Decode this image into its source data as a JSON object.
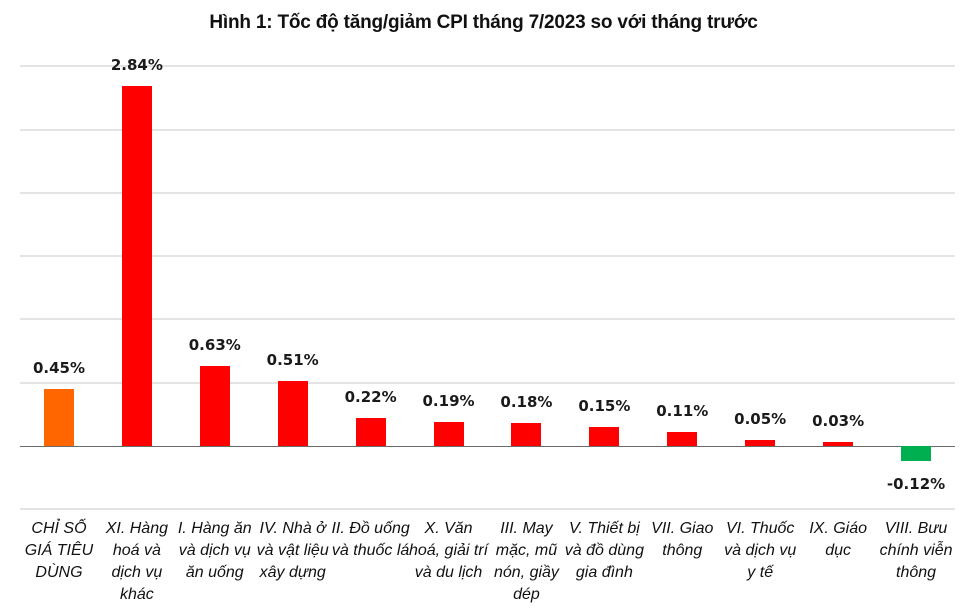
{
  "chart_data": {
    "type": "bar",
    "title": "Hình 1: Tốc độ tăng/giảm CPI tháng 7/2023 so với tháng trước",
    "xlabel": "",
    "ylabel": "",
    "ylim": [
      -0.5,
      3.0
    ],
    "grid": true,
    "legend": "none",
    "categories": [
      "CHỈ SỐ GIÁ TIÊU DÙNG",
      "XI. Hàng hoá và dịch vụ khác",
      "I. Hàng ăn và dịch vụ ăn uống",
      "IV. Nhà ở và vật liệu xây dựng",
      "II. Đồ uống và thuốc lá",
      "X. Văn hoá, giải trí và du lịch",
      "III. May mặc, mũ nón, giầy dép",
      "V. Thiết bị và đồ dùng gia đình",
      "VII. Giao thông",
      "VI. Thuốc và dịch vụ y tế",
      "IX. Giáo dục",
      "VIII. Bưu chính viễn thông"
    ],
    "values": [
      0.45,
      2.84,
      0.63,
      0.51,
      0.22,
      0.19,
      0.18,
      0.15,
      0.11,
      0.05,
      0.03,
      -0.12
    ],
    "labels": [
      "0.45%",
      "2.84%",
      "0.63%",
      "0.51%",
      "0.22%",
      "0.19%",
      "0.18%",
      "0.15%",
      "0.11%",
      "0.05%",
      "0.03%",
      "-0.12%"
    ],
    "colors": [
      "#ff6600",
      "#ff0000",
      "#ff0000",
      "#ff0000",
      "#ff0000",
      "#ff0000",
      "#ff0000",
      "#ff0000",
      "#ff0000",
      "#ff0000",
      "#ff0000",
      "#00b050"
    ]
  },
  "colors": {
    "total": "#ff6600",
    "increase": "#ff0000",
    "decrease": "#00b050",
    "grid": "#e4e4e4",
    "axis": "#6b6b6b"
  }
}
